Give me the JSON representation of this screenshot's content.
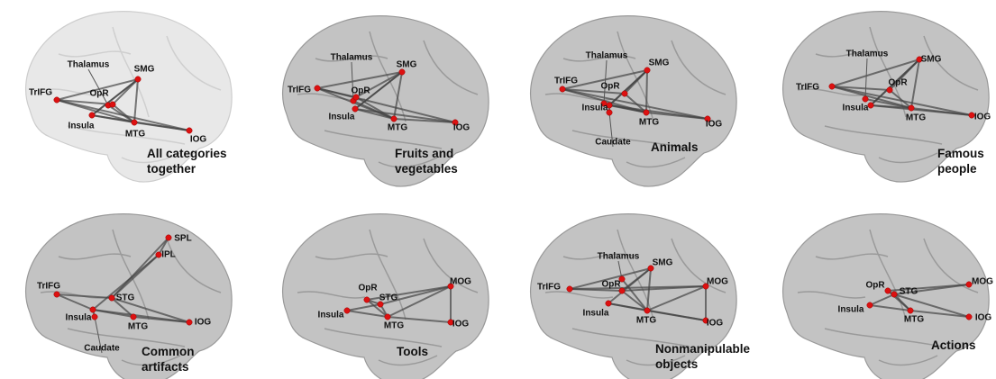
{
  "panels": [
    {
      "caption": [
        "All categories",
        "together"
      ],
      "nodes": [
        "TrIFG",
        "Thalamus",
        "SMG",
        "OpR",
        "Insula",
        "MTG",
        "IOG"
      ]
    },
    {
      "caption": [
        "Fruits and",
        "vegetables"
      ],
      "nodes": [
        "TrIFG",
        "Thalamus",
        "SMG",
        "OpR",
        "Insula",
        "MTG",
        "IOG"
      ]
    },
    {
      "caption": [
        "Animals"
      ],
      "nodes": [
        "TrIFG",
        "Thalamus",
        "SMG",
        "OpR",
        "Insula",
        "MTG",
        "IOG",
        "Caudate"
      ]
    },
    {
      "caption": [
        "Famous",
        "people"
      ],
      "nodes": [
        "TrIFG",
        "Thalamus",
        "SMG",
        "OpR",
        "Insula",
        "MTG",
        "IOG"
      ]
    },
    {
      "caption": [
        "Common",
        "artifacts"
      ],
      "nodes": [
        "SPL",
        "IPL",
        "TrIFG",
        "STG",
        "Insula",
        "MTG",
        "IOG",
        "Caudate"
      ]
    },
    {
      "caption": [
        "Tools"
      ],
      "nodes": [
        "OpR",
        "STG",
        "MOG",
        "Insula",
        "MTG",
        "IOG"
      ]
    },
    {
      "caption": [
        "Nonmanipulable",
        "objects"
      ],
      "nodes": [
        "Thalamus",
        "SMG",
        "TrIFG",
        "OpR",
        "Insula",
        "MTG",
        "MOG",
        "IOG"
      ]
    },
    {
      "caption": [
        "Actions"
      ],
      "nodes": [
        "OpR",
        "STG",
        "MOG",
        "Insula",
        "MTG",
        "IOG"
      ]
    }
  ]
}
